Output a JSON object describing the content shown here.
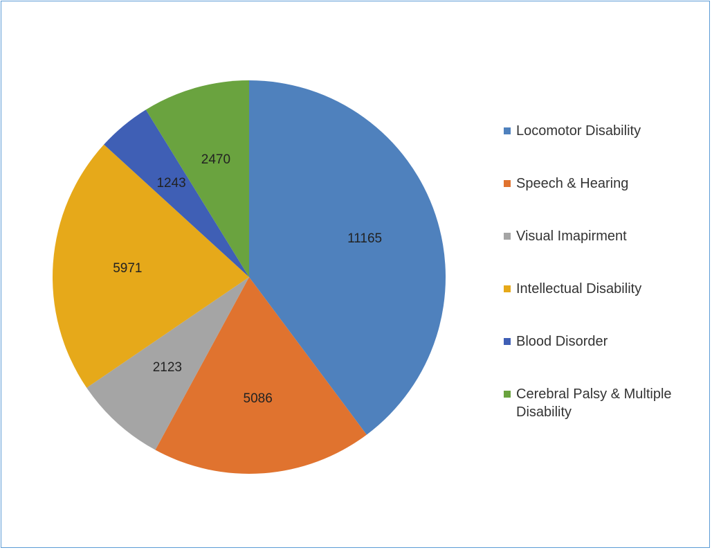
{
  "chart_data": {
    "type": "pie",
    "title": "",
    "legend_position": "right",
    "slices": [
      {
        "label": "Locomotor Disability",
        "value": 11165,
        "value_label": "11165",
        "color": "#4f81bd"
      },
      {
        "label": "Speech & Hearing",
        "value": 5086,
        "value_label": "5086",
        "color": "#e0732f"
      },
      {
        "label": "Visual Imapirment",
        "value": 2123,
        "value_label": "2123",
        "color": "#a5a5a5"
      },
      {
        "label": "Intellectual Disability",
        "value": 5971,
        "value_label": "5971",
        "color": "#e6a91a"
      },
      {
        "label": "Blood Disorder",
        "value": 1243,
        "value_label": "1243",
        "color": "#3f5fb5"
      },
      {
        "label": "Cerebral Palsy & Multiple Disability",
        "value": 2470,
        "value_label": "2470",
        "color": "#6aa33f"
      }
    ]
  }
}
